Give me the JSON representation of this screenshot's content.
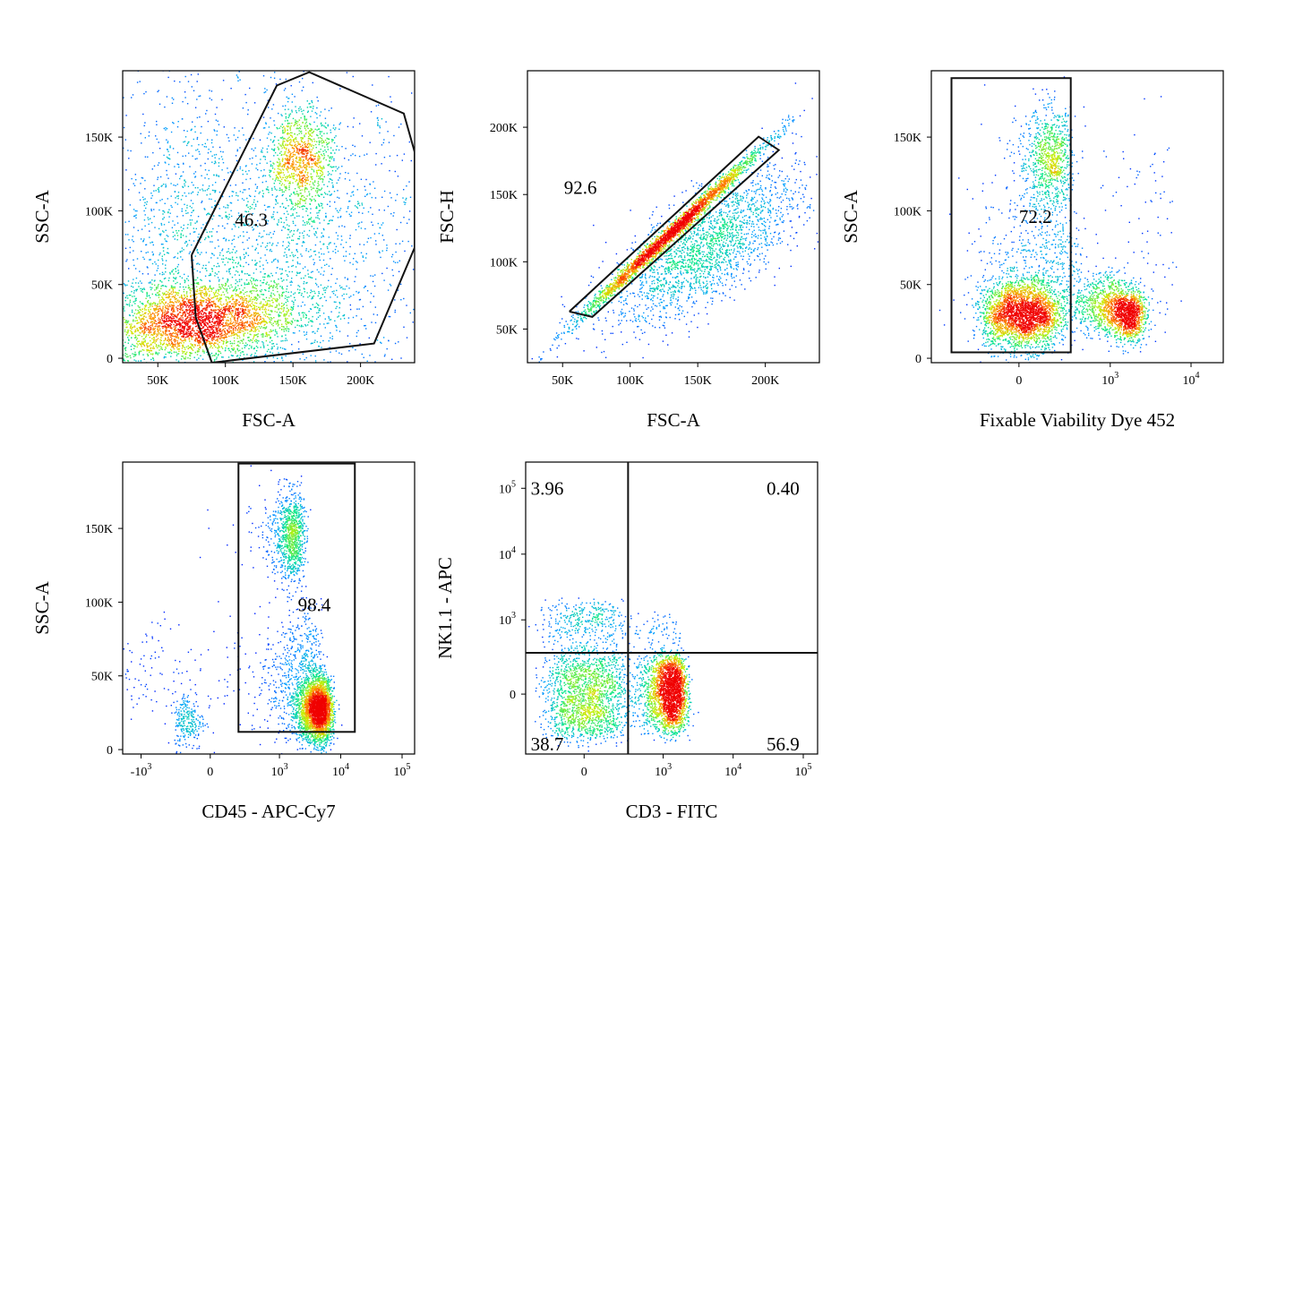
{
  "chart_data": [
    {
      "type": "scatter",
      "id": "p1",
      "xlabel": "FSC-A",
      "ylabel": "SSC-A",
      "xscale": "linear",
      "xlim": [
        24000,
        240000
      ],
      "ylim": [
        -3000,
        195000
      ],
      "xticks": [
        {
          "v": 50000,
          "label": "50K"
        },
        {
          "v": 100000,
          "label": "100K"
        },
        {
          "v": 150000,
          "label": "150K"
        },
        {
          "v": 200000,
          "label": "200K"
        }
      ],
      "yticks": [
        {
          "v": 0,
          "label": "0"
        },
        {
          "v": 50000,
          "label": "50K"
        },
        {
          "v": 100000,
          "label": "100K"
        },
        {
          "v": 150000,
          "label": "150K"
        }
      ],
      "gate": {
        "shape": "polygon",
        "vertices": [
          [
            75000,
            70000
          ],
          [
            138000,
            185000
          ],
          [
            162000,
            194000
          ],
          [
            232000,
            166000
          ],
          [
            240000,
            140000
          ],
          [
            240000,
            75000
          ],
          [
            210000,
            10000
          ],
          [
            90000,
            -3000
          ],
          [
            78000,
            28000
          ],
          [
            75000,
            70000
          ]
        ]
      },
      "gate_labels": [
        {
          "text": "46.3",
          "x": 107000,
          "y": 94000
        }
      ],
      "populations": [
        {
          "name": "",
          "cx": 78000,
          "cy": 25000,
          "sx": 38000,
          "sy": 14000,
          "n": 3200,
          "corr": 0.2
        },
        {
          "name": "",
          "cx": 155000,
          "cy": 135000,
          "sx": 12000,
          "sy": 18000,
          "n": 1000,
          "corr": 0
        },
        {
          "name": "",
          "cx": 140000,
          "cy": 70000,
          "sx": 55000,
          "sy": 50000,
          "n": 1600,
          "corr": 0
        },
        {
          "name": "",
          "cx": 60000,
          "cy": 75000,
          "sx": 25000,
          "sy": 60000,
          "n": 700,
          "corr": 0
        },
        {
          "name": "",
          "cx": 130000,
          "cy": 100000,
          "sx": 90000,
          "sy": 90000,
          "n": 700,
          "corr": 0
        }
      ]
    },
    {
      "type": "scatter",
      "id": "p2",
      "xlabel": "FSC-A",
      "ylabel": "FSC-H",
      "xscale": "linear",
      "xlim": [
        24000,
        240000
      ],
      "ylim": [
        25000,
        242000
      ],
      "xticks": [
        {
          "v": 50000,
          "label": "50K"
        },
        {
          "v": 100000,
          "label": "100K"
        },
        {
          "v": 150000,
          "label": "150K"
        },
        {
          "v": 200000,
          "label": "200K"
        }
      ],
      "yticks": [
        {
          "v": 50000,
          "label": "50K"
        },
        {
          "v": 100000,
          "label": "100K"
        },
        {
          "v": 150000,
          "label": "150K"
        },
        {
          "v": 200000,
          "label": "200K"
        }
      ],
      "gate": {
        "shape": "polygon",
        "vertices": [
          [
            55000,
            63000
          ],
          [
            195000,
            193000
          ],
          [
            210000,
            183000
          ],
          [
            72000,
            59000
          ],
          [
            55000,
            63000
          ]
        ]
      },
      "gate_labels": [
        {
          "text": "92.6",
          "x": 51000,
          "y": 155000
        }
      ],
      "populations": [
        {
          "name": "",
          "cx": 130000,
          "cy": 122000,
          "sx": 35000,
          "sy": 33000,
          "n": 2600,
          "corr": 0.995
        },
        {
          "name": "",
          "cx": 155000,
          "cy": 110000,
          "sx": 35000,
          "sy": 28000,
          "n": 2200,
          "corr": 0.7
        }
      ]
    },
    {
      "type": "scatter",
      "id": "p3",
      "xlabel": "Fixable Viability Dye 452",
      "ylabel": "SSC-A",
      "xscale": "biexp",
      "xlim": [
        -900,
        25000
      ],
      "ylim": [
        -3000,
        195000
      ],
      "xticks": [
        {
          "v": 0,
          "label": "0"
        },
        {
          "v": 1000,
          "label": "10",
          "sup": "3"
        },
        {
          "v": 10000,
          "label": "10",
          "sup": "4"
        }
      ],
      "yticks": [
        {
          "v": 0,
          "label": "0"
        },
        {
          "v": 50000,
          "label": "50K"
        },
        {
          "v": 100000,
          "label": "100K"
        },
        {
          "v": 150000,
          "label": "150K"
        }
      ],
      "gate": {
        "shape": "rect",
        "x0": -500,
        "x1": 310,
        "y0": 4000,
        "y1": 190000
      },
      "gate_labels": [
        {
          "text": "72.2",
          "x": 0,
          "y": 96000
        }
      ],
      "populations": [
        {
          "name": "",
          "cx": 10,
          "cy": 30000,
          "sx": 95,
          "sy": 12000,
          "n": 2600,
          "corr": 0
        },
        {
          "name": "",
          "cx": 150,
          "cy": 135000,
          "sx": 80,
          "sy": 17000,
          "n": 900,
          "corr": 0
        },
        {
          "name": "",
          "cx": 1600,
          "cy": 30000,
          "sx": 500,
          "sy": 9000,
          "n": 1200,
          "corr": 0
        },
        {
          "name": "",
          "cx": 700,
          "cy": 38000,
          "sx": 400,
          "sy": 10000,
          "n": 700,
          "corr": 0
        },
        {
          "name": "",
          "cx": 100,
          "cy": 70000,
          "sx": 150,
          "sy": 25000,
          "n": 500,
          "corr": 0
        },
        {
          "name": "",
          "cx": 1500,
          "cy": 80000,
          "sx": 2500,
          "sy": 50000,
          "n": 150,
          "corr": 0
        }
      ]
    },
    {
      "type": "scatter",
      "id": "p4",
      "xlabel": "CD45 - APC-Cy7",
      "ylabel": "SSC-A",
      "xscale": "biexp",
      "xlim": [
        -2000,
        160000
      ],
      "ylim": [
        -3000,
        195000
      ],
      "xticks": [
        {
          "v": -1000,
          "label": "-10",
          "sup": "3"
        },
        {
          "v": 0,
          "label": "0"
        },
        {
          "v": 1000,
          "label": "10",
          "sup": "3"
        },
        {
          "v": 10000,
          "label": "10",
          "sup": "4"
        },
        {
          "v": 100000,
          "label": "10",
          "sup": "5"
        }
      ],
      "yticks": [
        {
          "v": 0,
          "label": "0"
        },
        {
          "v": 50000,
          "label": "50K"
        },
        {
          "v": 100000,
          "label": "100K"
        },
        {
          "v": 150000,
          "label": "150K"
        }
      ],
      "gate": {
        "shape": "rect",
        "x0": 190,
        "x1": 17000,
        "y0": 12000,
        "y1": 194000
      },
      "gate_labels": [
        {
          "text": "98.4",
          "x": 2000,
          "y": 98000
        }
      ],
      "populations": [
        {
          "name": "",
          "cx": 4200,
          "cy": 27000,
          "sx": 1400,
          "sy": 11000,
          "n": 2800,
          "corr": 0
        },
        {
          "name": "",
          "cx": 1500,
          "cy": 145000,
          "sx": 500,
          "sy": 15000,
          "n": 1000,
          "corr": 0
        },
        {
          "name": "",
          "cx": 1800,
          "cy": 55000,
          "sx": 1500,
          "sy": 20000,
          "n": 700,
          "corr": 0
        },
        {
          "name": "",
          "cx": -150,
          "cy": 20000,
          "sx": 60,
          "sy": 10000,
          "n": 250,
          "corr": 0
        }
      ]
    },
    {
      "type": "scatter",
      "id": "p5",
      "xlabel": "CD3 - FITC",
      "ylabel": "NK1.1 - APC",
      "xscale": "biexp",
      "yscale": "biexp",
      "xlim": [
        -500,
        160000
      ],
      "ylim": [
        -600,
        250000
      ],
      "xticks": [
        {
          "v": 0,
          "label": "0"
        },
        {
          "v": 1000,
          "label": "10",
          "sup": "3"
        },
        {
          "v": 10000,
          "label": "10",
          "sup": "4"
        },
        {
          "v": 100000,
          "label": "10",
          "sup": "5"
        }
      ],
      "yticks": [
        {
          "v": 0,
          "label": "0"
        },
        {
          "v": 1000,
          "label": "10",
          "sup": "3"
        },
        {
          "v": 10000,
          "label": "10",
          "sup": "4"
        },
        {
          "v": 100000,
          "label": "10",
          "sup": "5"
        }
      ],
      "gate": {
        "shape": "quadrant",
        "x": 300,
        "y": 300
      },
      "gate_labels": [
        {
          "text": "3.96",
          "x": -420,
          "y": 100000
        },
        {
          "text": "0.40",
          "x": 30000,
          "y": 100000
        },
        {
          "text": "38.7",
          "x": -420,
          "y": -420
        },
        {
          "text": "56.9",
          "x": 30000,
          "y": -420
        }
      ],
      "populations": [
        {
          "name": "",
          "cx": 1200,
          "cy": 10,
          "sx": 450,
          "sy": 120,
          "n": 2400,
          "corr": 0
        },
        {
          "name": "",
          "cx": 10,
          "cy": -20,
          "sx": 120,
          "sy": 150,
          "n": 1700,
          "corr": 0
        },
        {
          "name": "",
          "cx": 0,
          "cy": 900,
          "sx": 120,
          "sy": 500,
          "n": 400,
          "corr": 0
        },
        {
          "name": "",
          "cx": 800,
          "cy": 600,
          "sx": 500,
          "sy": 300,
          "n": 120,
          "corr": 0
        }
      ]
    }
  ]
}
